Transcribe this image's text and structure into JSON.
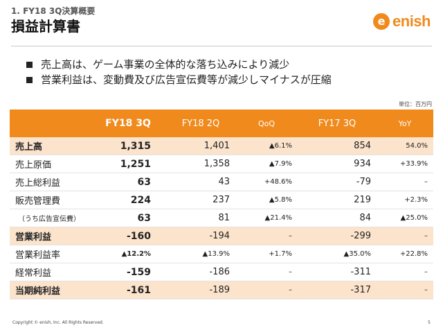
{
  "header": {
    "subtitle": "1. FY18 3Q決算概要",
    "title": "損益計算書"
  },
  "logo": {
    "mark": "e",
    "text": "enish",
    "color": "#f08a1c"
  },
  "bullets": [
    "売上高は、ゲーム事業の全体的な落ち込みにより減少",
    "営業利益は、変動費及び広告宣伝費等が減少しマイナスが圧縮"
  ],
  "unit_label": "単位：百万円",
  "table": {
    "columns": [
      "",
      "FY18 3Q",
      "FY18 2Q",
      "QoQ",
      "FY17 3Q",
      "YoY"
    ],
    "rows": [
      {
        "label": "売上高",
        "values": [
          "1,315",
          "1,401",
          "▲6.1%",
          "854",
          "54.0%"
        ],
        "highlight": true
      },
      {
        "label": "売上原価",
        "values": [
          "1,251",
          "1,358",
          "▲7.9%",
          "934",
          "+33.9%"
        ],
        "highlight": false
      },
      {
        "label": "売上総利益",
        "values": [
          "63",
          "43",
          "+48.6%",
          "-79",
          "–"
        ],
        "highlight": false
      },
      {
        "label": "販売管理費",
        "values": [
          "224",
          "237",
          "▲5.8%",
          "219",
          "+2.3%"
        ],
        "highlight": false
      },
      {
        "label": "（うち広告宣伝費）",
        "values": [
          "63",
          "81",
          "▲21.4%",
          "84",
          "▲25.0%"
        ],
        "highlight": false,
        "sub": true
      },
      {
        "label": "営業利益",
        "values": [
          "-160",
          "-194",
          "–",
          "-299",
          "–"
        ],
        "highlight": true
      },
      {
        "label": "営業利益率",
        "values": [
          "▲12.2%",
          "▲13.9%",
          "+1.7%",
          "▲35.0%",
          "+22.8%"
        ],
        "highlight": false
      },
      {
        "label": "経常利益",
        "values": [
          "-159",
          "-186",
          "–",
          "-311",
          "–"
        ],
        "highlight": false
      },
      {
        "label": "当期純利益",
        "values": [
          "-161",
          "-189",
          "–",
          "-317",
          "–"
        ],
        "highlight": true
      }
    ]
  },
  "colors": {
    "accent": "#f08a1c",
    "highlight_row": "#fbe3cc"
  },
  "footer": {
    "copyright": "Copyright © enish, Inc. All Rights Reserved.",
    "page": "5"
  }
}
